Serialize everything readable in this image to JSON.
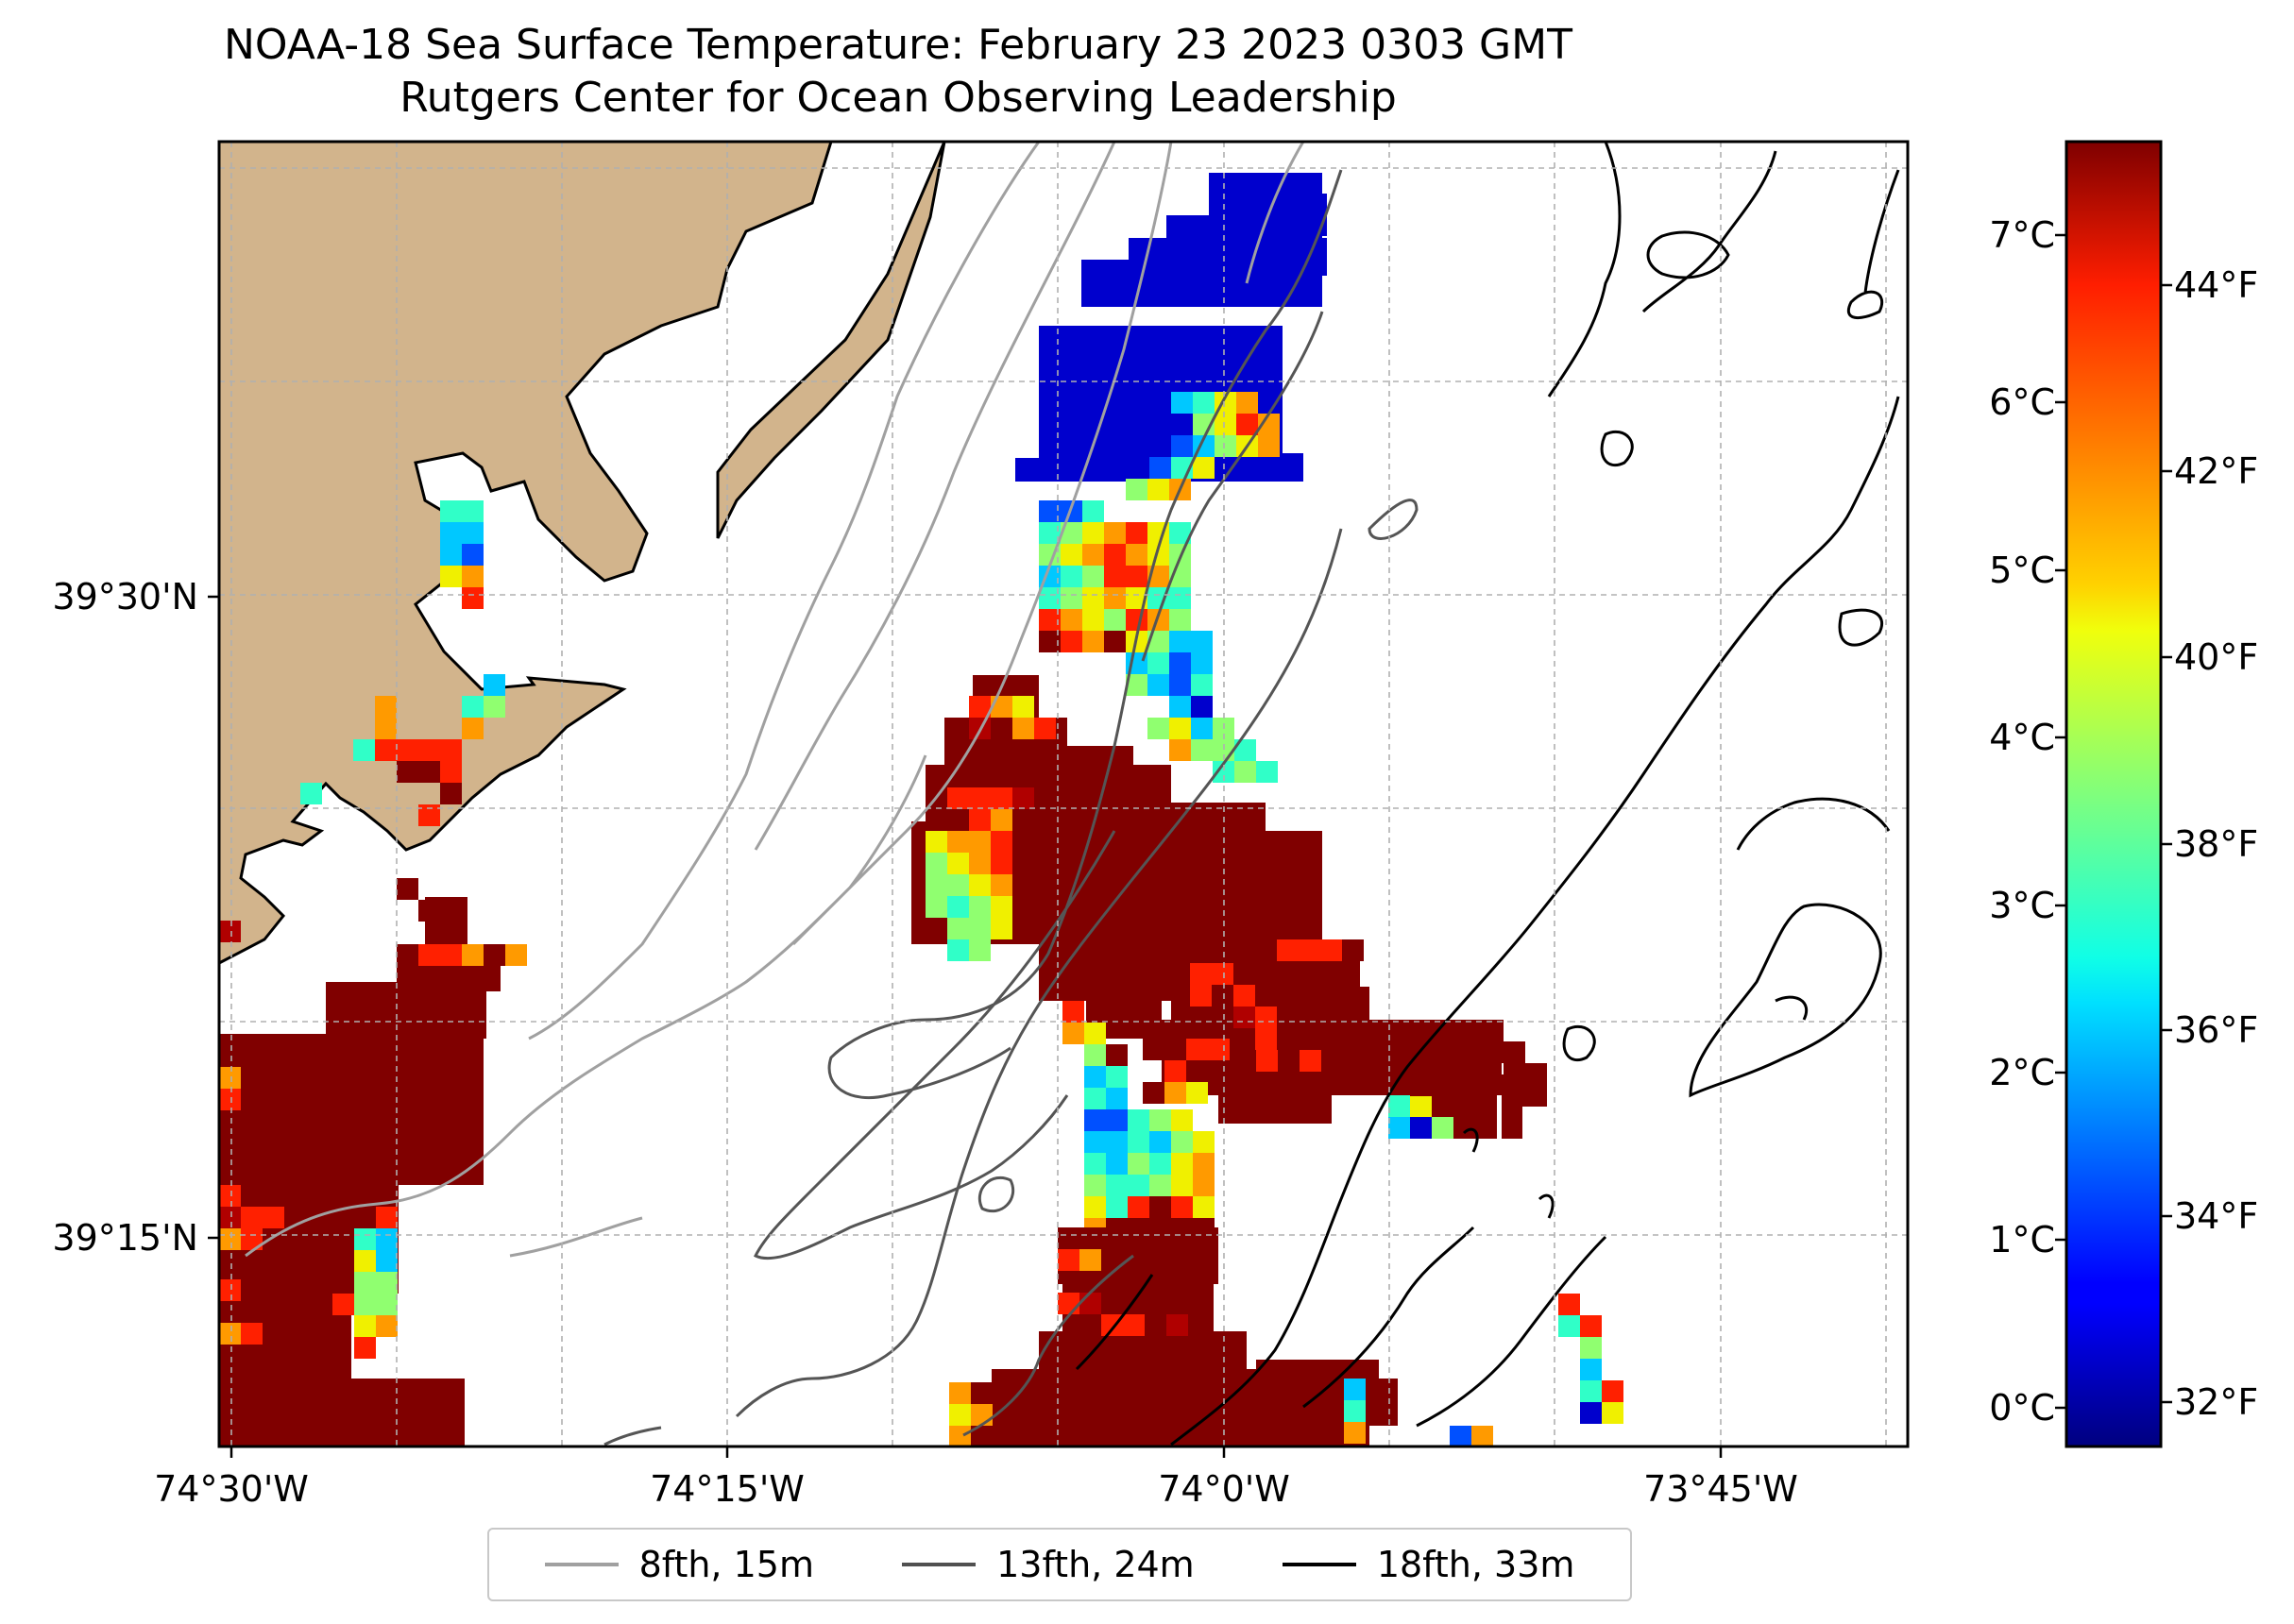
{
  "title": {
    "line1": "NOAA-18 Sea Surface Temperature: February 23 2023 0303 GMT",
    "line2": "Rutgers Center for Ocean Observing Leadership"
  },
  "map": {
    "land_color": "#d2b48c",
    "grid": true,
    "x_ticks": [
      "74°30'W",
      "74°15'W",
      "74°0'W",
      "73°45'W"
    ],
    "y_ticks": [
      "39°30'N",
      "39°15'N"
    ]
  },
  "colorbar": {
    "colormap": "jet",
    "celsius_ticks": [
      "0°C",
      "1°C",
      "2°C",
      "3°C",
      "4°C",
      "5°C",
      "6°C",
      "7°C"
    ],
    "fahrenheit_ticks": [
      "32°F",
      "34°F",
      "36°F",
      "38°F",
      "40°F",
      "42°F",
      "44°F"
    ],
    "range_c": [
      -0.3,
      7.5
    ]
  },
  "legend": {
    "placement": "bottom-center",
    "items": [
      {
        "label": "8fth, 15m",
        "color": "#a0a0a0"
      },
      {
        "label": "13fth, 24m",
        "color": "#505050"
      },
      {
        "label": "18fth, 33m",
        "color": "#000000"
      }
    ]
  }
}
